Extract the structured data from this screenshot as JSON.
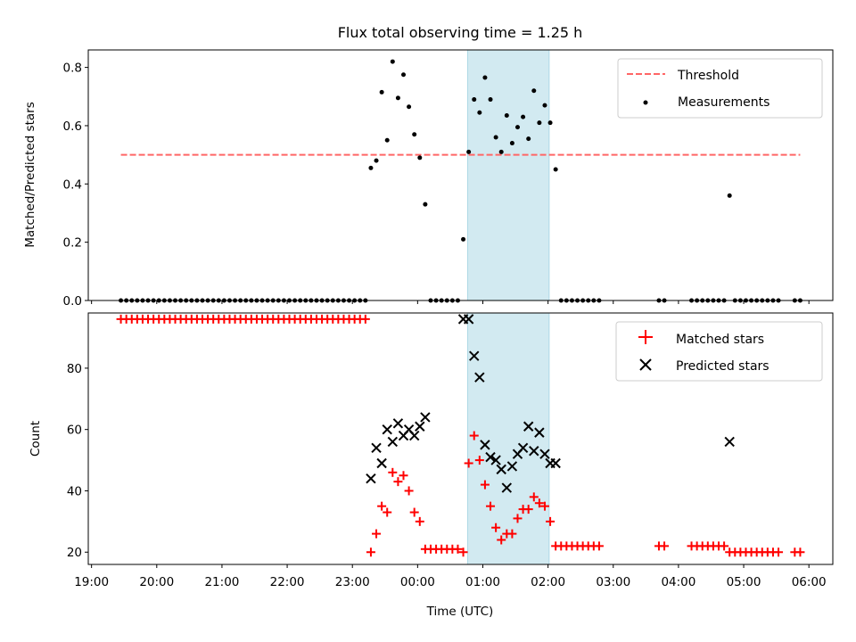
{
  "chart_data": [
    {
      "type": "scatter",
      "title": "Flux total observing time = 1.25 h",
      "xlabel": "",
      "ylabel": "Matched/Predicted stars",
      "xlim": [
        "18:57",
        "06:22"
      ],
      "ylim": [
        0,
        0.86
      ],
      "yticks": [
        0.0,
        0.2,
        0.4,
        0.6,
        0.8
      ],
      "ytick_labels": [
        "0.0",
        "0.2",
        "0.4",
        "0.6",
        "0.8"
      ],
      "highlight_span": {
        "start": "00:46",
        "end": "02:01",
        "color": "#add8e6"
      },
      "threshold": {
        "name": "Threshold",
        "value": 0.5,
        "x": [
          "19:27",
          "05:52"
        ],
        "color": "#ff6666"
      },
      "series": [
        {
          "name": "Measurements",
          "color": "#000000",
          "points": [
            [
              "19:27",
              0
            ],
            [
              "19:32",
              0
            ],
            [
              "19:37",
              0
            ],
            [
              "19:42",
              0
            ],
            [
              "19:47",
              0
            ],
            [
              "19:52",
              0
            ],
            [
              "19:57",
              0
            ],
            [
              "20:02",
              0
            ],
            [
              "20:07",
              0
            ],
            [
              "20:12",
              0
            ],
            [
              "20:17",
              0
            ],
            [
              "20:22",
              0
            ],
            [
              "20:27",
              0
            ],
            [
              "20:32",
              0
            ],
            [
              "20:37",
              0
            ],
            [
              "20:42",
              0
            ],
            [
              "20:47",
              0
            ],
            [
              "20:52",
              0
            ],
            [
              "20:57",
              0
            ],
            [
              "21:02",
              0
            ],
            [
              "21:07",
              0
            ],
            [
              "21:12",
              0
            ],
            [
              "21:17",
              0
            ],
            [
              "21:22",
              0
            ],
            [
              "21:27",
              0
            ],
            [
              "21:32",
              0
            ],
            [
              "21:37",
              0
            ],
            [
              "21:42",
              0
            ],
            [
              "21:47",
              0
            ],
            [
              "21:52",
              0
            ],
            [
              "21:57",
              0
            ],
            [
              "22:02",
              0
            ],
            [
              "22:07",
              0
            ],
            [
              "22:12",
              0
            ],
            [
              "22:17",
              0
            ],
            [
              "22:22",
              0
            ],
            [
              "22:27",
              0
            ],
            [
              "22:32",
              0
            ],
            [
              "22:37",
              0
            ],
            [
              "22:42",
              0
            ],
            [
              "22:47",
              0
            ],
            [
              "22:52",
              0
            ],
            [
              "22:57",
              0
            ],
            [
              "23:02",
              0
            ],
            [
              "23:07",
              0
            ],
            [
              "23:12",
              0
            ],
            [
              "23:17",
              0.455
            ],
            [
              "23:22",
              0.48
            ],
            [
              "23:27",
              0.715
            ],
            [
              "23:32",
              0.55
            ],
            [
              "23:37",
              0.82
            ],
            [
              "23:42",
              0.695
            ],
            [
              "23:47",
              0.775
            ],
            [
              "23:52",
              0.665
            ],
            [
              "23:57",
              0.57
            ],
            [
              "00:02",
              0.49
            ],
            [
              "00:07",
              0.33
            ],
            [
              "00:12",
              0
            ],
            [
              "00:17",
              0
            ],
            [
              "00:22",
              0
            ],
            [
              "00:27",
              0
            ],
            [
              "00:32",
              0
            ],
            [
              "00:37",
              0
            ],
            [
              "00:42",
              0.21
            ],
            [
              "00:47",
              0.51
            ],
            [
              "00:52",
              0.69
            ],
            [
              "00:57",
              0.645
            ],
            [
              "01:02",
              0.765
            ],
            [
              "01:07",
              0.69
            ],
            [
              "01:12",
              0.56
            ],
            [
              "01:17",
              0.51
            ],
            [
              "01:22",
              0.635
            ],
            [
              "01:27",
              0.54
            ],
            [
              "01:32",
              0.595
            ],
            [
              "01:37",
              0.63
            ],
            [
              "01:42",
              0.555
            ],
            [
              "01:47",
              0.72
            ],
            [
              "01:52",
              0.61
            ],
            [
              "01:57",
              0.67
            ],
            [
              "02:02",
              0.61
            ],
            [
              "02:07",
              0.45
            ],
            [
              "02:12",
              0
            ],
            [
              "02:17",
              0
            ],
            [
              "02:22",
              0
            ],
            [
              "02:27",
              0
            ],
            [
              "02:32",
              0
            ],
            [
              "02:37",
              0
            ],
            [
              "02:42",
              0
            ],
            [
              "02:47",
              0
            ],
            [
              "03:42",
              0
            ],
            [
              "03:47",
              0
            ],
            [
              "04:12",
              0
            ],
            [
              "04:17",
              0
            ],
            [
              "04:22",
              0
            ],
            [
              "04:27",
              0
            ],
            [
              "04:32",
              0
            ],
            [
              "04:37",
              0
            ],
            [
              "04:42",
              0
            ],
            [
              "04:47",
              0.36
            ],
            [
              "04:52",
              0
            ],
            [
              "04:57",
              0
            ],
            [
              "05:02",
              0
            ],
            [
              "05:07",
              0
            ],
            [
              "05:12",
              0
            ],
            [
              "05:17",
              0
            ],
            [
              "05:22",
              0
            ],
            [
              "05:27",
              0
            ],
            [
              "05:32",
              0
            ],
            [
              "05:47",
              0
            ],
            [
              "05:52",
              0
            ]
          ]
        }
      ],
      "legend": {
        "position": "upper right",
        "entries": [
          "Threshold",
          "Measurements"
        ]
      }
    },
    {
      "type": "scatter",
      "title": "",
      "xlabel": "Time (UTC)",
      "ylabel": "Count",
      "xlim": [
        "18:57",
        "06:22"
      ],
      "ylim": [
        16,
        98
      ],
      "yticks": [
        20,
        40,
        60,
        80
      ],
      "ytick_labels": [
        "20",
        "40",
        "60",
        "80"
      ],
      "xticks": [
        "19:00",
        "20:00",
        "21:00",
        "22:00",
        "23:00",
        "00:00",
        "01:00",
        "02:00",
        "03:00",
        "04:00",
        "05:00",
        "06:00"
      ],
      "highlight_span": {
        "start": "00:46",
        "end": "02:01",
        "color": "#add8e6"
      },
      "series": [
        {
          "name": "Matched stars",
          "marker": "plus",
          "color": "#ff0000",
          "points": [
            [
              "19:27",
              96
            ],
            [
              "19:32",
              96
            ],
            [
              "19:37",
              96
            ],
            [
              "19:42",
              96
            ],
            [
              "19:47",
              96
            ],
            [
              "19:52",
              96
            ],
            [
              "19:57",
              96
            ],
            [
              "20:02",
              96
            ],
            [
              "20:07",
              96
            ],
            [
              "20:12",
              96
            ],
            [
              "20:17",
              96
            ],
            [
              "20:22",
              96
            ],
            [
              "20:27",
              96
            ],
            [
              "20:32",
              96
            ],
            [
              "20:37",
              96
            ],
            [
              "20:42",
              96
            ],
            [
              "20:47",
              96
            ],
            [
              "20:52",
              96
            ],
            [
              "20:57",
              96
            ],
            [
              "21:02",
              96
            ],
            [
              "21:07",
              96
            ],
            [
              "21:12",
              96
            ],
            [
              "21:17",
              96
            ],
            [
              "21:22",
              96
            ],
            [
              "21:27",
              96
            ],
            [
              "21:32",
              96
            ],
            [
              "21:37",
              96
            ],
            [
              "21:42",
              96
            ],
            [
              "21:47",
              96
            ],
            [
              "21:52",
              96
            ],
            [
              "21:57",
              96
            ],
            [
              "22:02",
              96
            ],
            [
              "22:07",
              96
            ],
            [
              "22:12",
              96
            ],
            [
              "22:17",
              96
            ],
            [
              "22:22",
              96
            ],
            [
              "22:27",
              96
            ],
            [
              "22:32",
              96
            ],
            [
              "22:37",
              96
            ],
            [
              "22:42",
              96
            ],
            [
              "22:47",
              96
            ],
            [
              "22:52",
              96
            ],
            [
              "22:57",
              96
            ],
            [
              "23:02",
              96
            ],
            [
              "23:07",
              96
            ],
            [
              "23:12",
              96
            ],
            [
              "23:17",
              20
            ],
            [
              "23:22",
              26
            ],
            [
              "23:27",
              35
            ],
            [
              "23:32",
              33
            ],
            [
              "23:37",
              46
            ],
            [
              "23:42",
              43
            ],
            [
              "23:47",
              45
            ],
            [
              "23:52",
              40
            ],
            [
              "23:57",
              33
            ],
            [
              "00:02",
              30
            ],
            [
              "00:07",
              21
            ],
            [
              "00:12",
              21
            ],
            [
              "00:17",
              21
            ],
            [
              "00:22",
              21
            ],
            [
              "00:27",
              21
            ],
            [
              "00:32",
              21
            ],
            [
              "00:37",
              21
            ],
            [
              "00:42",
              20
            ],
            [
              "00:47",
              49
            ],
            [
              "00:52",
              58
            ],
            [
              "00:57",
              50
            ],
            [
              "01:02",
              42
            ],
            [
              "01:07",
              35
            ],
            [
              "01:12",
              28
            ],
            [
              "01:17",
              24
            ],
            [
              "01:22",
              26
            ],
            [
              "01:27",
              26
            ],
            [
              "01:32",
              31
            ],
            [
              "01:37",
              34
            ],
            [
              "01:42",
              34
            ],
            [
              "01:47",
              38
            ],
            [
              "01:52",
              36
            ],
            [
              "01:57",
              35
            ],
            [
              "02:02",
              30
            ],
            [
              "02:07",
              22
            ],
            [
              "02:12",
              22
            ],
            [
              "02:17",
              22
            ],
            [
              "02:22",
              22
            ],
            [
              "02:27",
              22
            ],
            [
              "02:32",
              22
            ],
            [
              "02:37",
              22
            ],
            [
              "02:42",
              22
            ],
            [
              "02:47",
              22
            ],
            [
              "03:42",
              22
            ],
            [
              "03:47",
              22
            ],
            [
              "04:12",
              22
            ],
            [
              "04:17",
              22
            ],
            [
              "04:22",
              22
            ],
            [
              "04:27",
              22
            ],
            [
              "04:32",
              22
            ],
            [
              "04:37",
              22
            ],
            [
              "04:42",
              22
            ],
            [
              "04:47",
              20
            ],
            [
              "04:52",
              20
            ],
            [
              "04:57",
              20
            ],
            [
              "05:02",
              20
            ],
            [
              "05:07",
              20
            ],
            [
              "05:12",
              20
            ],
            [
              "05:17",
              20
            ],
            [
              "05:22",
              20
            ],
            [
              "05:27",
              20
            ],
            [
              "05:32",
              20
            ],
            [
              "05:47",
              20
            ],
            [
              "05:52",
              20
            ]
          ]
        },
        {
          "name": "Predicted stars",
          "marker": "x",
          "color": "#000000",
          "points": [
            [
              "23:17",
              44
            ],
            [
              "23:22",
              54
            ],
            [
              "23:27",
              49
            ],
            [
              "23:32",
              60
            ],
            [
              "23:37",
              56
            ],
            [
              "23:42",
              62
            ],
            [
              "23:47",
              58
            ],
            [
              "23:52",
              60
            ],
            [
              "23:57",
              58
            ],
            [
              "00:02",
              61
            ],
            [
              "00:07",
              64
            ],
            [
              "00:42",
              96
            ],
            [
              "00:47",
              96
            ],
            [
              "00:52",
              84
            ],
            [
              "00:57",
              77
            ],
            [
              "01:02",
              55
            ],
            [
              "01:07",
              51
            ],
            [
              "01:12",
              50
            ],
            [
              "01:17",
              47
            ],
            [
              "01:22",
              41
            ],
            [
              "01:27",
              48
            ],
            [
              "01:32",
              52
            ],
            [
              "01:37",
              54
            ],
            [
              "01:42",
              61
            ],
            [
              "01:47",
              53
            ],
            [
              "01:52",
              59
            ],
            [
              "01:57",
              52
            ],
            [
              "02:02",
              49
            ],
            [
              "02:07",
              49
            ],
            [
              "04:47",
              56
            ]
          ]
        }
      ],
      "legend": {
        "position": "upper right",
        "entries": [
          "Matched stars",
          "Predicted stars"
        ]
      }
    }
  ]
}
